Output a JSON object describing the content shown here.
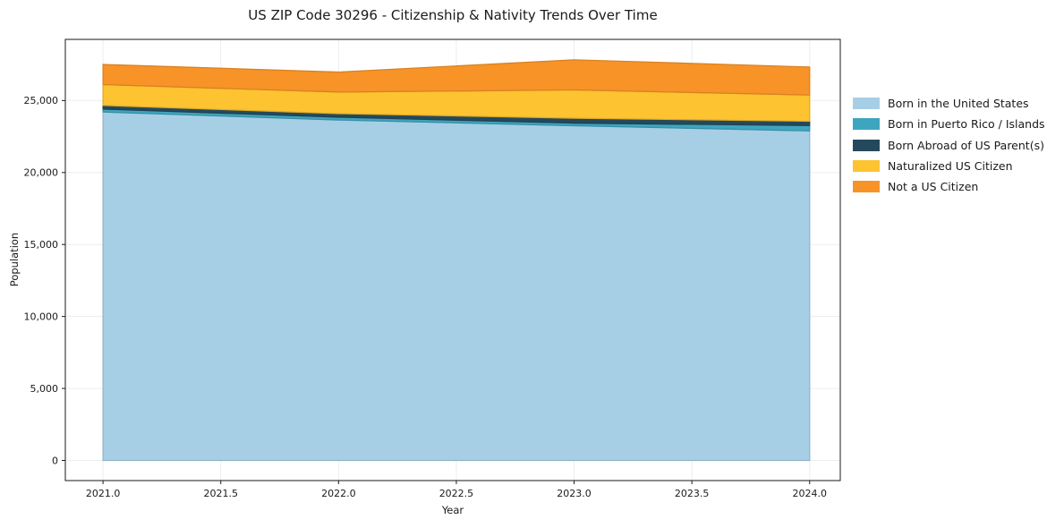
{
  "chart_data": {
    "type": "area",
    "stacked": true,
    "title": "US ZIP Code 30296 - Citizenship & Nativity Trends Over Time",
    "xlabel": "Year",
    "ylabel": "Population",
    "x": [
      2021,
      2022,
      2023,
      2024
    ],
    "series": [
      {
        "name": "Born in the United States",
        "color": "#a6cfe5",
        "values": [
          24200,
          23650,
          23250,
          22890
        ]
      },
      {
        "name": "Born in Puerto Rico / Islands",
        "color": "#3da6bf",
        "values": [
          210,
          190,
          180,
          375
        ]
      },
      {
        "name": "Born Abroad of US Parent(s)",
        "color": "#25495c",
        "values": [
          250,
          250,
          345,
          295
        ]
      },
      {
        "name": "Naturalized US Citizen",
        "color": "#fdc330",
        "values": [
          1450,
          1500,
          1960,
          1820
        ]
      },
      {
        "name": "Not a US Citizen",
        "color": "#f79327",
        "values": [
          1400,
          1390,
          2100,
          1950
        ]
      }
    ],
    "totals": [
      27510,
      26980,
      27835,
      27330
    ],
    "xticks": [
      2021.0,
      2021.5,
      2022.0,
      2022.5,
      2023.0,
      2023.5,
      2024.0
    ],
    "xtick_labels": [
      "2021.0",
      "2021.5",
      "2022.0",
      "2022.5",
      "2023.0",
      "2023.5",
      "2024.0"
    ],
    "yticks": [
      0,
      5000,
      10000,
      15000,
      20000,
      25000
    ],
    "ytick_labels": [
      "0",
      "5,000",
      "10,000",
      "15,000",
      "20,000",
      "25,000"
    ],
    "xlim": [
      2020.84,
      2024.13
    ],
    "ylim": [
      -1400,
      29250
    ],
    "grid": true,
    "grid_color": "#ebebeb",
    "axis_color": "#1a1a1a",
    "legend_position": "right-outside"
  }
}
